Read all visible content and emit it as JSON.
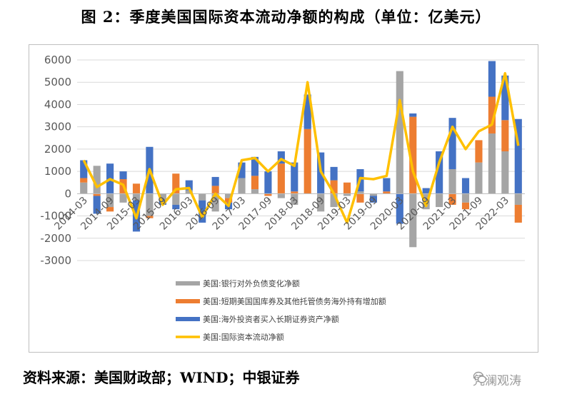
{
  "title": "图 2：季度美国国际资本流动净额的构成（单位：亿美元）",
  "source": "资料来源：美国财政部；WIND；中银证券",
  "watermark": "凭澜观涛",
  "chart_data": {
    "type": "bar",
    "stacked": true,
    "ylim": [
      -3000,
      6000
    ],
    "yticks": [
      6000,
      5000,
      4000,
      3000,
      2000,
      1000,
      0,
      -1000,
      -2000,
      -3000
    ],
    "categories": [
      "2014-03",
      "2014-06",
      "2014-09",
      "2014-12",
      "2015-03",
      "2015-06",
      "2015-09",
      "2015-12",
      "2016-03",
      "2016-06",
      "2016-09",
      "2016-12",
      "2017-03",
      "2017-06",
      "2017-09",
      "2017-12",
      "2018-03",
      "2018-06",
      "2018-09",
      "2018-12",
      "2019-03",
      "2019-06",
      "2019-09",
      "2019-12",
      "2020-03",
      "2020-06",
      "2020-09",
      "2020-12",
      "2021-03",
      "2021-06",
      "2021-09",
      "2021-12",
      "2022-03",
      "2022-06"
    ],
    "xtick_labels": [
      "2014-03",
      "2014-09",
      "2015-03",
      "2015-09",
      "2016-03",
      "2016-09",
      "2017-03",
      "2017-09",
      "2018-03",
      "2018-09",
      "2019-03",
      "2019-09",
      "2020-03",
      "2020-09",
      "2021-03",
      "2021-09",
      "2022-03"
    ],
    "series": [
      {
        "name": "美国:银行对外负债变化净额",
        "type": "bar",
        "color": "#a5a5a5",
        "values": [
          500,
          1250,
          -600,
          -400,
          -300,
          -1000,
          -300,
          -500,
          150,
          -300,
          -800,
          -200,
          700,
          200,
          0,
          -200,
          -500,
          0,
          -800,
          -600,
          -100,
          100,
          -100,
          0,
          5500,
          -2400,
          -700,
          -600,
          1100,
          -400,
          1400,
          2700,
          1900,
          -500
        ]
      },
      {
        "name": "美国:短期美国国库券及其他托管债务海外持有增加额",
        "type": "bar",
        "color": "#ed7d31",
        "values": [
          200,
          -100,
          -200,
          650,
          450,
          -100,
          0,
          900,
          0,
          0,
          350,
          -200,
          0,
          600,
          -100,
          1350,
          100,
          2900,
          0,
          600,
          500,
          -400,
          0,
          100,
          0,
          3450,
          0,
          0,
          -500,
          -300,
          1000,
          1650,
          1400,
          -800
        ]
      },
      {
        "name": "美国:海外投资者买入长期证券资产净额",
        "type": "bar",
        "color": "#4472c4",
        "values": [
          800,
          -800,
          1350,
          350,
          -1400,
          2100,
          -200,
          -200,
          450,
          -1000,
          400,
          -300,
          700,
          850,
          1000,
          550,
          1300,
          1550,
          1850,
          600,
          0,
          1000,
          -300,
          600,
          -1350,
          150,
          250,
          1900,
          2300,
          700,
          0,
          1600,
          2000,
          3350
        ]
      },
      {
        "name": "美国:国际资本流动净额",
        "type": "line",
        "color": "#ffc000",
        "values": [
          1500,
          300,
          650,
          400,
          -1100,
          1100,
          -500,
          200,
          250,
          -1050,
          0,
          -550,
          1500,
          1600,
          1000,
          1550,
          1250,
          5000,
          1000,
          0,
          -1300,
          700,
          650,
          800,
          4200,
          1000,
          -550,
          1400,
          3000,
          2000,
          2800,
          3100,
          5400,
          2150
        ]
      }
    ]
  }
}
